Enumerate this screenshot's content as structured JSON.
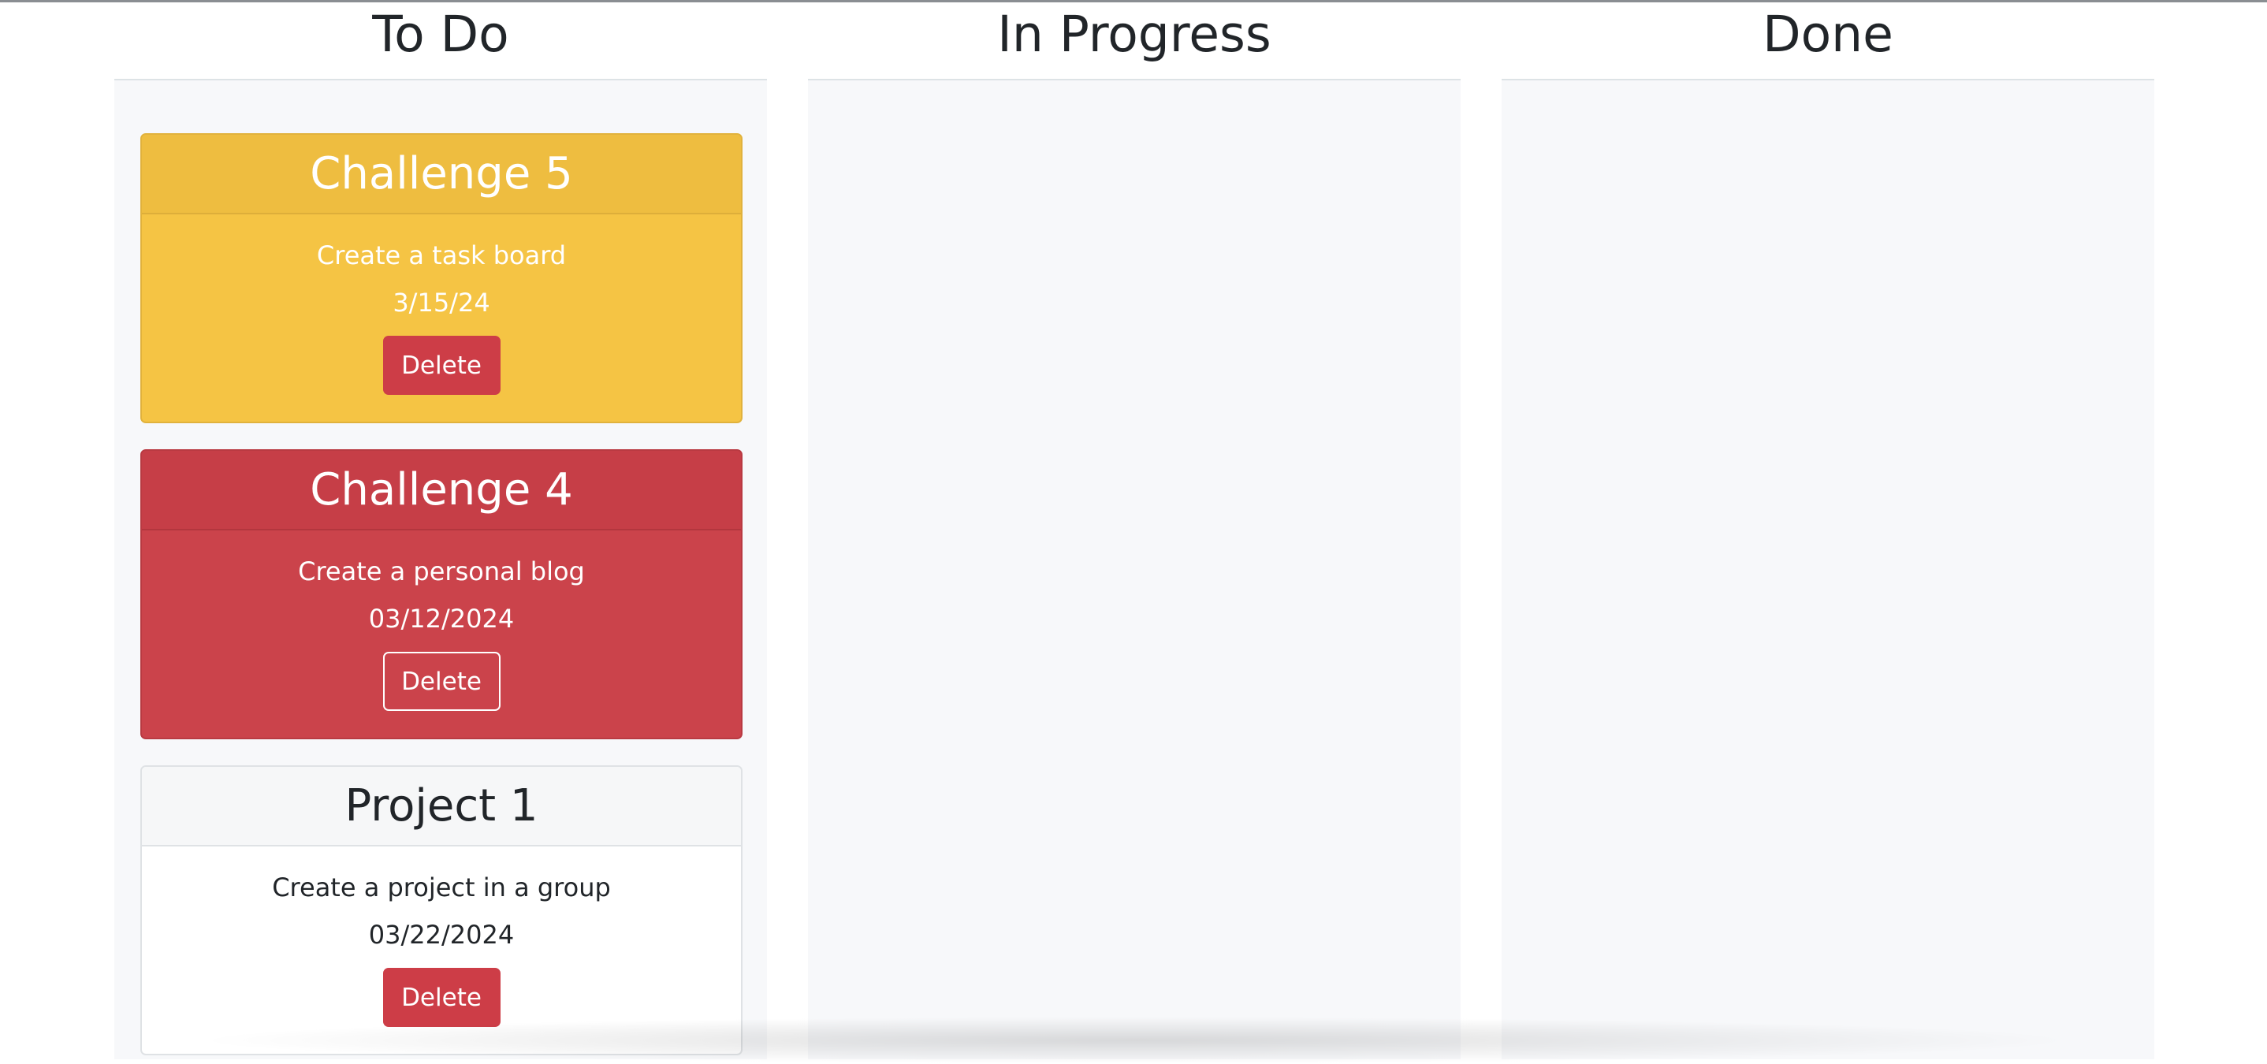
{
  "lanes": [
    {
      "title": "To Do",
      "cards": [
        {
          "title": "Challenge 5",
          "description": "Create a task board",
          "date": "3/15/24",
          "delete_label": "Delete"
        },
        {
          "title": "Challenge 4",
          "description": "Create a personal blog",
          "date": "03/12/2024",
          "delete_label": "Delete"
        },
        {
          "title": "Project 1",
          "description": "Create a project in a group",
          "date": "03/22/2024",
          "delete_label": "Delete"
        }
      ]
    },
    {
      "title": "In Progress",
      "cards": []
    },
    {
      "title": "Done",
      "cards": []
    }
  ],
  "colors": {
    "warning": "#f5c444",
    "danger": "#cb434b",
    "delete_button": "#cd3d47",
    "lane_background": "#f7f8fa"
  }
}
